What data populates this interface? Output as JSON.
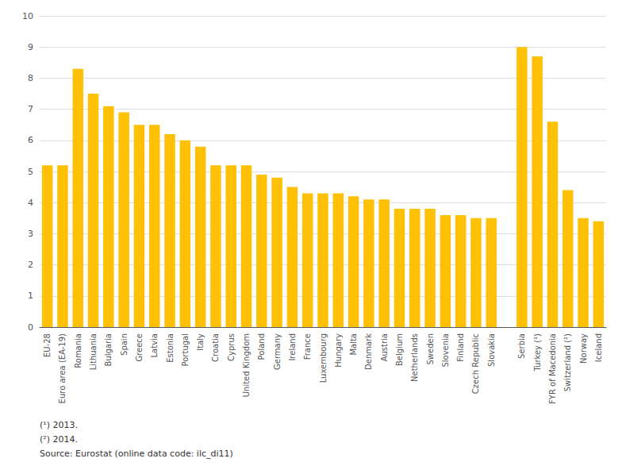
{
  "chart_data": {
    "type": "bar",
    "categories": [
      "EU-28",
      "Euro area (EA-19)",
      "Romania",
      "Lithuania",
      "Bulgaria",
      "Spain",
      "Greece",
      "Latvia",
      "Estonia",
      "Portugal",
      "Italy",
      "Croatia",
      "Cyprus",
      "United Kingdom",
      "Poland",
      "Germany",
      "Ireland",
      "France",
      "Luxembourg",
      "Hungary",
      "Malta",
      "Denmark",
      "Austria",
      "Belgium",
      "Netherlands",
      "Sweden",
      "Slovenia",
      "Finland",
      "Czech Republic",
      "Slovakia",
      null,
      "Serbia",
      "Turkey (¹)",
      "FYR of Macedonia",
      "Switzerland (²)",
      "Norway",
      "Iceland"
    ],
    "values": [
      5.2,
      5.2,
      8.3,
      7.5,
      7.1,
      6.9,
      6.5,
      6.5,
      6.2,
      6.0,
      5.8,
      5.2,
      5.2,
      5.2,
      4.9,
      4.8,
      4.5,
      4.3,
      4.3,
      4.3,
      4.2,
      4.1,
      4.1,
      3.8,
      3.8,
      3.8,
      3.6,
      3.6,
      3.5,
      3.5,
      null,
      9.0,
      8.7,
      6.6,
      4.4,
      3.5,
      3.4
    ],
    "color": "#FFC107",
    "ylim": [
      0,
      10
    ],
    "yticks": [
      0,
      1,
      2,
      3,
      4,
      5,
      6,
      7,
      8,
      9,
      10
    ],
    "grid": true,
    "annotations": [
      "(¹) 2013.",
      "(²) 2014.",
      "Source: Eurostat (online data code: ilc_di11)"
    ]
  }
}
